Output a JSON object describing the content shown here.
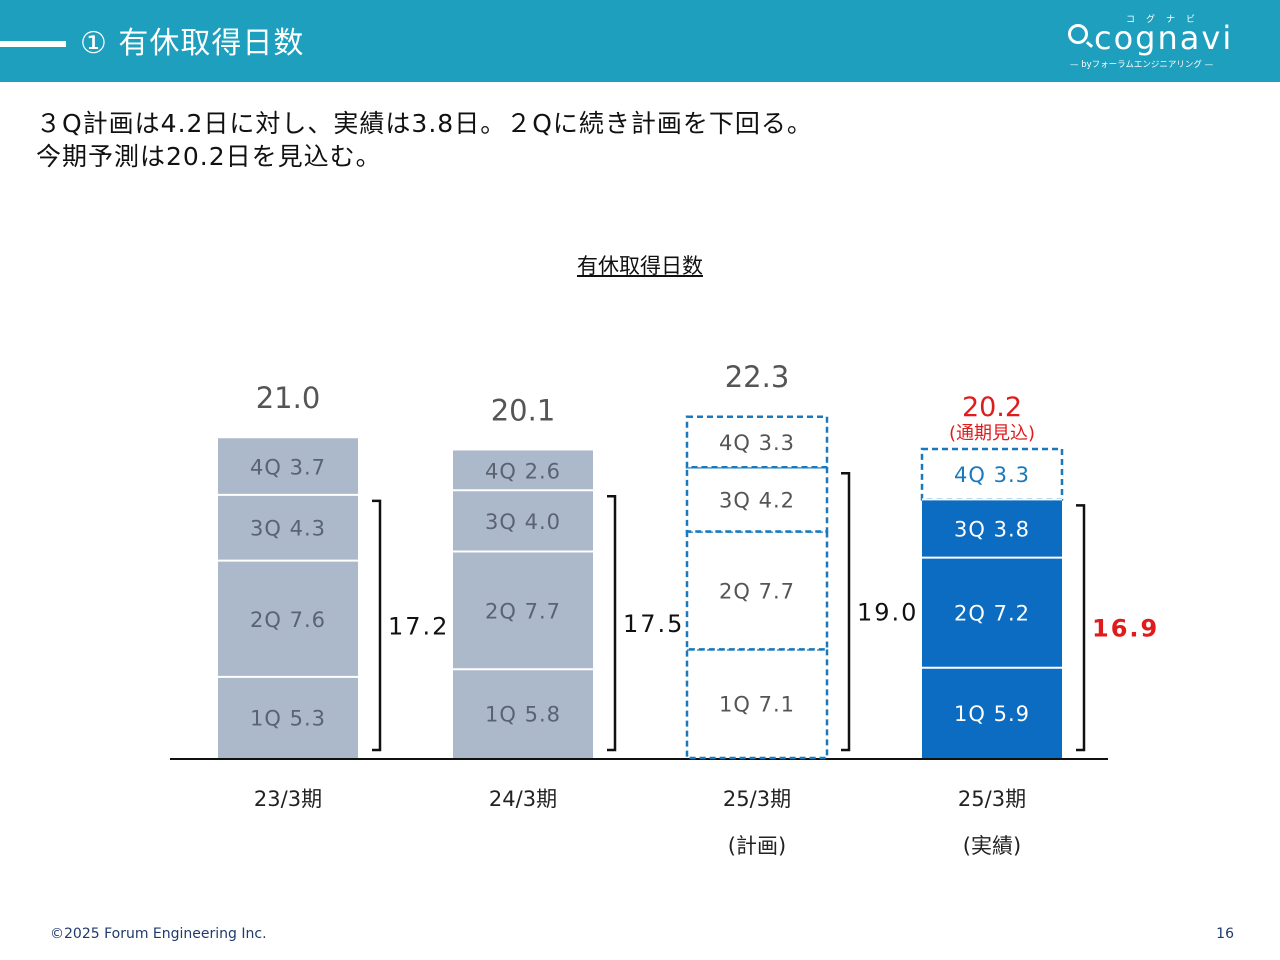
{
  "header": {
    "title": "① 有休取得日数",
    "logo": {
      "kana": "コグナビ",
      "word": "cognavi",
      "sub": "— byフォーラムエンジニアリング —"
    }
  },
  "lead": {
    "line1": "３Q計画は4.2日に対し、実績は3.8日。２Qに続き計画を下回る。",
    "line2": "今期予測は20.2日を見込む。"
  },
  "colors": {
    "header": "#1d9fbd",
    "past_bars": "#acb9cb",
    "actual_bars": "#0c6cc2",
    "plan_outline": "#1a78bd",
    "highlight_red": "#e01b1b"
  },
  "chart_data": {
    "type": "bar",
    "stacked": true,
    "title": "有休取得日数",
    "categories": [
      "23/3期",
      "24/3期",
      "25/3期",
      "25/3期"
    ],
    "category_sublabels": [
      "",
      "",
      "(計画)",
      "(実績)"
    ],
    "series": [
      {
        "name": "1Q",
        "values": [
          5.3,
          5.8,
          7.1,
          5.9
        ]
      },
      {
        "name": "2Q",
        "values": [
          7.6,
          7.7,
          7.7,
          7.2
        ]
      },
      {
        "name": "3Q",
        "values": [
          4.3,
          4.0,
          4.2,
          3.8
        ]
      },
      {
        "name": "4Q",
        "values": [
          3.7,
          2.6,
          3.3,
          3.3
        ]
      }
    ],
    "segment_labels": [
      [
        "1Q 5.3",
        "2Q 7.6",
        "3Q 4.3",
        "4Q 3.7"
      ],
      [
        "1Q 5.8",
        "2Q 7.7",
        "3Q 4.0",
        "4Q 2.6"
      ],
      [
        "1Q 7.1",
        "2Q 7.7",
        "3Q 4.2",
        "4Q 3.3"
      ],
      [
        "1Q 5.9",
        "2Q 7.2",
        "3Q 3.8",
        "4Q 3.3"
      ]
    ],
    "totals": [
      "21.0",
      "20.1",
      "22.3",
      "20.2"
    ],
    "total_notes": [
      "",
      "",
      "",
      "(通期見込)"
    ],
    "cumulative_1q_3q": [
      "17.2",
      "17.5",
      "19.0",
      "16.9"
    ],
    "bar_styles": [
      "past",
      "past",
      "plan",
      "actual"
    ],
    "fourth_quarter_style": [
      "past",
      "past",
      "plan",
      "plan"
    ],
    "ylim": [
      0,
      25
    ],
    "grid": false,
    "legend": "none"
  },
  "footer": {
    "copyright": "©2025 Forum Engineering Inc.",
    "page": "16"
  }
}
